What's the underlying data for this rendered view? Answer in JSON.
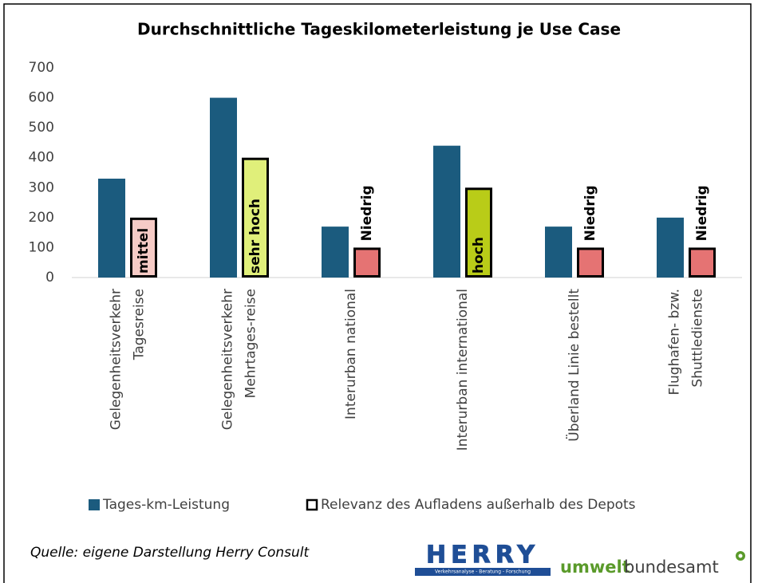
{
  "chart_data": {
    "type": "bar",
    "title": "Durchschnittliche Tageskilometerleistung je Use Case",
    "categories": [
      [
        "Gelegenheitsverkehr",
        "Tagesreise"
      ],
      [
        "Gelegenheitsverkehr",
        "Mehrtages-reise"
      ],
      [
        "Interurban national"
      ],
      [
        "Interurban international"
      ],
      [
        "Überland Linie bestellt"
      ],
      [
        "Flughafen- bzw.",
        "Shuttledienste"
      ]
    ],
    "series": [
      {
        "name": "Tages-km-Leistung",
        "color": "#1b5b7e",
        "values": [
          330,
          600,
          170,
          440,
          170,
          200
        ]
      },
      {
        "name": "Relevanz des Aufladens außerhalb des Depots",
        "color": "#ffffff",
        "values": [
          200,
          400,
          100,
          300,
          100,
          100
        ],
        "colors": [
          "#f6cbc6",
          "#e0ef7a",
          "#e57373",
          "#b9cc18",
          "#e57373",
          "#e57373"
        ],
        "labels": [
          "mittel",
          "sehr hoch",
          "Niedrig",
          "hoch",
          "Niedrig",
          "Niedrig"
        ]
      }
    ],
    "ylim": [
      0,
      700
    ],
    "yticks": [
      0,
      100,
      200,
      300,
      400,
      500,
      600,
      700
    ],
    "grid": false,
    "legend": "bottom",
    "source": "Quelle: eigene Darstellung Herry Consult",
    "logos": {
      "herry": "HERRY",
      "herry_tagline": "Verkehrsanalyse - Beratung - Forschung",
      "uba_bold": "umwelt",
      "uba_regular": "bundesamt"
    }
  }
}
